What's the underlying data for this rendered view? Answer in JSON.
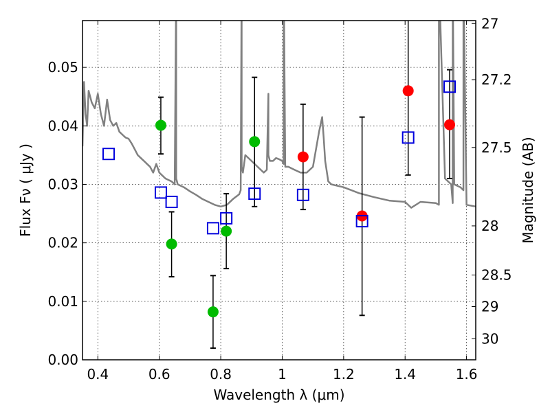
{
  "chart_data": {
    "type": "scatter",
    "xlabel": "Wavelength  λ (μm)",
    "ylabel": "Flux  Fν  ( μJy )",
    "y2label": "Magnitude (AB)",
    "xlim": [
      0.35,
      1.63
    ],
    "ylim": [
      0.0,
      0.058
    ],
    "grid": true,
    "x_ticks": [
      0.4,
      0.6,
      0.8,
      1.0,
      1.2,
      1.4,
      1.6
    ],
    "x_tick_labels": [
      "0.4",
      "0.6",
      "0.8",
      "1",
      "1.2",
      "1.4",
      "1.6"
    ],
    "y_ticks": [
      0.0,
      0.01,
      0.02,
      0.03,
      0.04,
      0.05
    ],
    "y_tick_labels": [
      "0.00",
      "0.01",
      "0.02",
      "0.03",
      "0.04",
      "0.05"
    ],
    "y2_ticks": [
      {
        "label": "27",
        "flux": 0.0575
      },
      {
        "label": "27.2",
        "flux": 0.0479
      },
      {
        "label": "27.5",
        "flux": 0.0363
      },
      {
        "label": "28",
        "flux": 0.0229
      },
      {
        "label": "28.5",
        "flux": 0.0145
      },
      {
        "label": "29",
        "flux": 0.0091
      },
      {
        "label": "30",
        "flux": 0.0036
      }
    ],
    "colors": {
      "green": "#00bb00",
      "red": "#ff0000",
      "model": "#808080",
      "square": "#0000dd",
      "errorbar": "#000000"
    },
    "series": [
      {
        "marker": "circle",
        "color": "green",
        "points": [
          {
            "x": 0.605,
            "y": 0.0401,
            "lo": 0.0352,
            "hi": 0.0449
          },
          {
            "x": 0.64,
            "y": 0.0198,
            "lo": 0.0142,
            "hi": 0.0253
          },
          {
            "x": 0.775,
            "y": 0.0082,
            "lo": 0.002,
            "hi": 0.0144
          },
          {
            "x": 0.818,
            "y": 0.022,
            "lo": 0.0156,
            "hi": 0.0284
          },
          {
            "x": 0.91,
            "y": 0.0373,
            "lo": 0.0262,
            "hi": 0.0483
          }
        ]
      },
      {
        "marker": "circle",
        "color": "red",
        "points": [
          {
            "x": 1.068,
            "y": 0.0347,
            "lo": 0.0257,
            "hi": 0.0437
          },
          {
            "x": 1.26,
            "y": 0.0246,
            "lo": 0.0076,
            "hi": 0.0415
          },
          {
            "x": 1.41,
            "y": 0.046,
            "lo": 0.0316,
            "hi": 0.0604
          },
          {
            "x": 1.545,
            "y": 0.0402,
            "lo": 0.031,
            "hi": 0.0496
          }
        ]
      },
      {
        "marker": "square",
        "color": "square",
        "points": [
          {
            "x": 0.435,
            "y": 0.0352
          },
          {
            "x": 0.605,
            "y": 0.0286
          },
          {
            "x": 0.64,
            "y": 0.027
          },
          {
            "x": 0.775,
            "y": 0.0225
          },
          {
            "x": 0.818,
            "y": 0.0242
          },
          {
            "x": 0.91,
            "y": 0.0284
          },
          {
            "x": 1.068,
            "y": 0.0282
          },
          {
            "x": 1.26,
            "y": 0.0237
          },
          {
            "x": 1.41,
            "y": 0.038
          },
          {
            "x": 1.545,
            "y": 0.0467
          }
        ]
      }
    ],
    "model_spectrum": {
      "color": "model",
      "x": [
        0.35,
        0.355,
        0.36,
        0.365,
        0.37,
        0.38,
        0.39,
        0.4,
        0.41,
        0.42,
        0.43,
        0.44,
        0.45,
        0.46,
        0.47,
        0.48,
        0.49,
        0.5,
        0.51,
        0.52,
        0.53,
        0.54,
        0.55,
        0.56,
        0.57,
        0.58,
        0.59,
        0.6,
        0.62,
        0.64,
        0.65,
        0.655,
        0.655,
        0.655,
        0.66,
        0.68,
        0.7,
        0.72,
        0.74,
        0.76,
        0.78,
        0.8,
        0.82,
        0.84,
        0.86,
        0.865,
        0.868,
        0.868,
        0.868,
        0.872,
        0.88,
        0.9,
        0.92,
        0.94,
        0.95,
        0.955,
        0.955,
        0.96,
        0.97,
        0.98,
        0.99,
        1.0,
        1.005,
        1.005,
        1.005,
        1.01,
        1.02,
        1.04,
        1.06,
        1.08,
        1.1,
        1.12,
        1.13,
        1.135,
        1.14,
        1.15,
        1.16,
        1.2,
        1.25,
        1.3,
        1.35,
        1.4,
        1.42,
        1.45,
        1.5,
        1.51,
        1.51,
        1.51,
        1.53,
        1.55,
        1.555,
        1.555,
        1.555,
        1.56,
        1.58,
        1.59,
        1.59,
        1.59,
        1.6,
        1.63
      ],
      "y": [
        0.0365,
        0.0475,
        0.042,
        0.04,
        0.046,
        0.044,
        0.043,
        0.0455,
        0.042,
        0.04,
        0.0445,
        0.041,
        0.04,
        0.0405,
        0.039,
        0.0385,
        0.038,
        0.0378,
        0.037,
        0.036,
        0.035,
        0.0345,
        0.034,
        0.0335,
        0.033,
        0.032,
        0.0335,
        0.032,
        0.031,
        0.0305,
        0.03,
        0.064,
        0.064,
        0.031,
        0.03,
        0.0295,
        0.0288,
        0.0282,
        0.0275,
        0.027,
        0.0265,
        0.0262,
        0.0265,
        0.0275,
        0.0283,
        0.029,
        0.066,
        0.066,
        0.033,
        0.032,
        0.035,
        0.034,
        0.033,
        0.032,
        0.0325,
        0.0455,
        0.035,
        0.034,
        0.034,
        0.0345,
        0.0343,
        0.034,
        0.0335,
        0.066,
        0.066,
        0.033,
        0.033,
        0.0325,
        0.032,
        0.032,
        0.033,
        0.039,
        0.0415,
        0.038,
        0.034,
        0.0305,
        0.03,
        0.0295,
        0.0285,
        0.0278,
        0.0272,
        0.027,
        0.026,
        0.027,
        0.0268,
        0.0265,
        0.066,
        0.066,
        0.031,
        0.03,
        0.0268,
        0.066,
        0.066,
        0.03,
        0.0295,
        0.029,
        0.066,
        0.066,
        0.0265,
        0.0262
      ]
    }
  }
}
